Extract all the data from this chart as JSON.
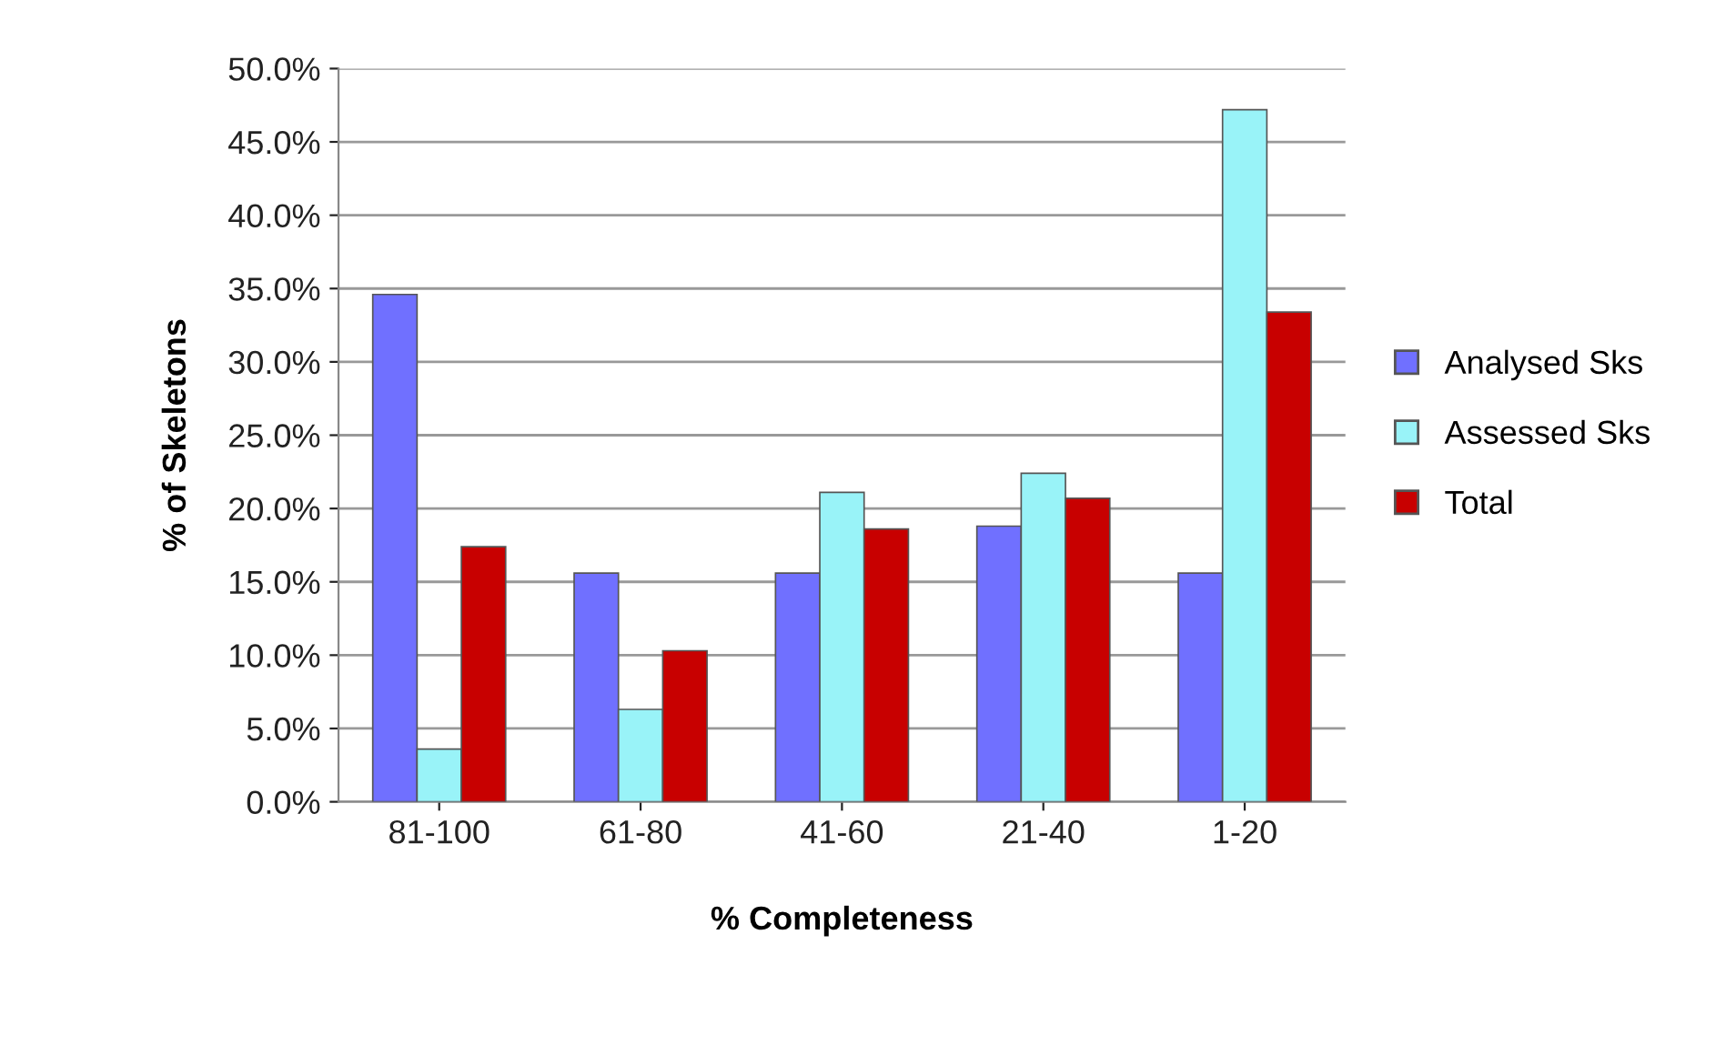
{
  "chart_data": {
    "type": "bar",
    "xlabel": "% Completeness",
    "ylabel": "% of Skeletons",
    "categories": [
      "81-100",
      "61-80",
      "41-60",
      "21-40",
      "1-20"
    ],
    "series": [
      {
        "name": "Analysed Sks",
        "color": "#7070ff",
        "values": [
          34.6,
          15.6,
          15.6,
          18.8,
          15.6
        ]
      },
      {
        "name": "Assessed Sks",
        "color": "#99f3f8",
        "values": [
          3.6,
          6.3,
          21.1,
          22.4,
          47.2
        ]
      },
      {
        "name": "Total",
        "color": "#c80000",
        "values": [
          17.4,
          10.3,
          18.6,
          20.7,
          33.4
        ]
      }
    ],
    "ylim": [
      0,
      50
    ],
    "yticks": [
      {
        "value": 0,
        "label": "0.0%"
      },
      {
        "value": 5,
        "label": "5.0%"
      },
      {
        "value": 10,
        "label": "10.0%"
      },
      {
        "value": 15,
        "label": "15.0%"
      },
      {
        "value": 20,
        "label": "20.0%"
      },
      {
        "value": 25,
        "label": "25.0%"
      },
      {
        "value": 30,
        "label": "30.0%"
      },
      {
        "value": 35,
        "label": "35.0%"
      },
      {
        "value": 40,
        "label": "40.0%"
      },
      {
        "value": 45,
        "label": "45.0%"
      },
      {
        "value": 50,
        "label": "50.0%"
      }
    ],
    "grid": "y",
    "legend": "right"
  }
}
